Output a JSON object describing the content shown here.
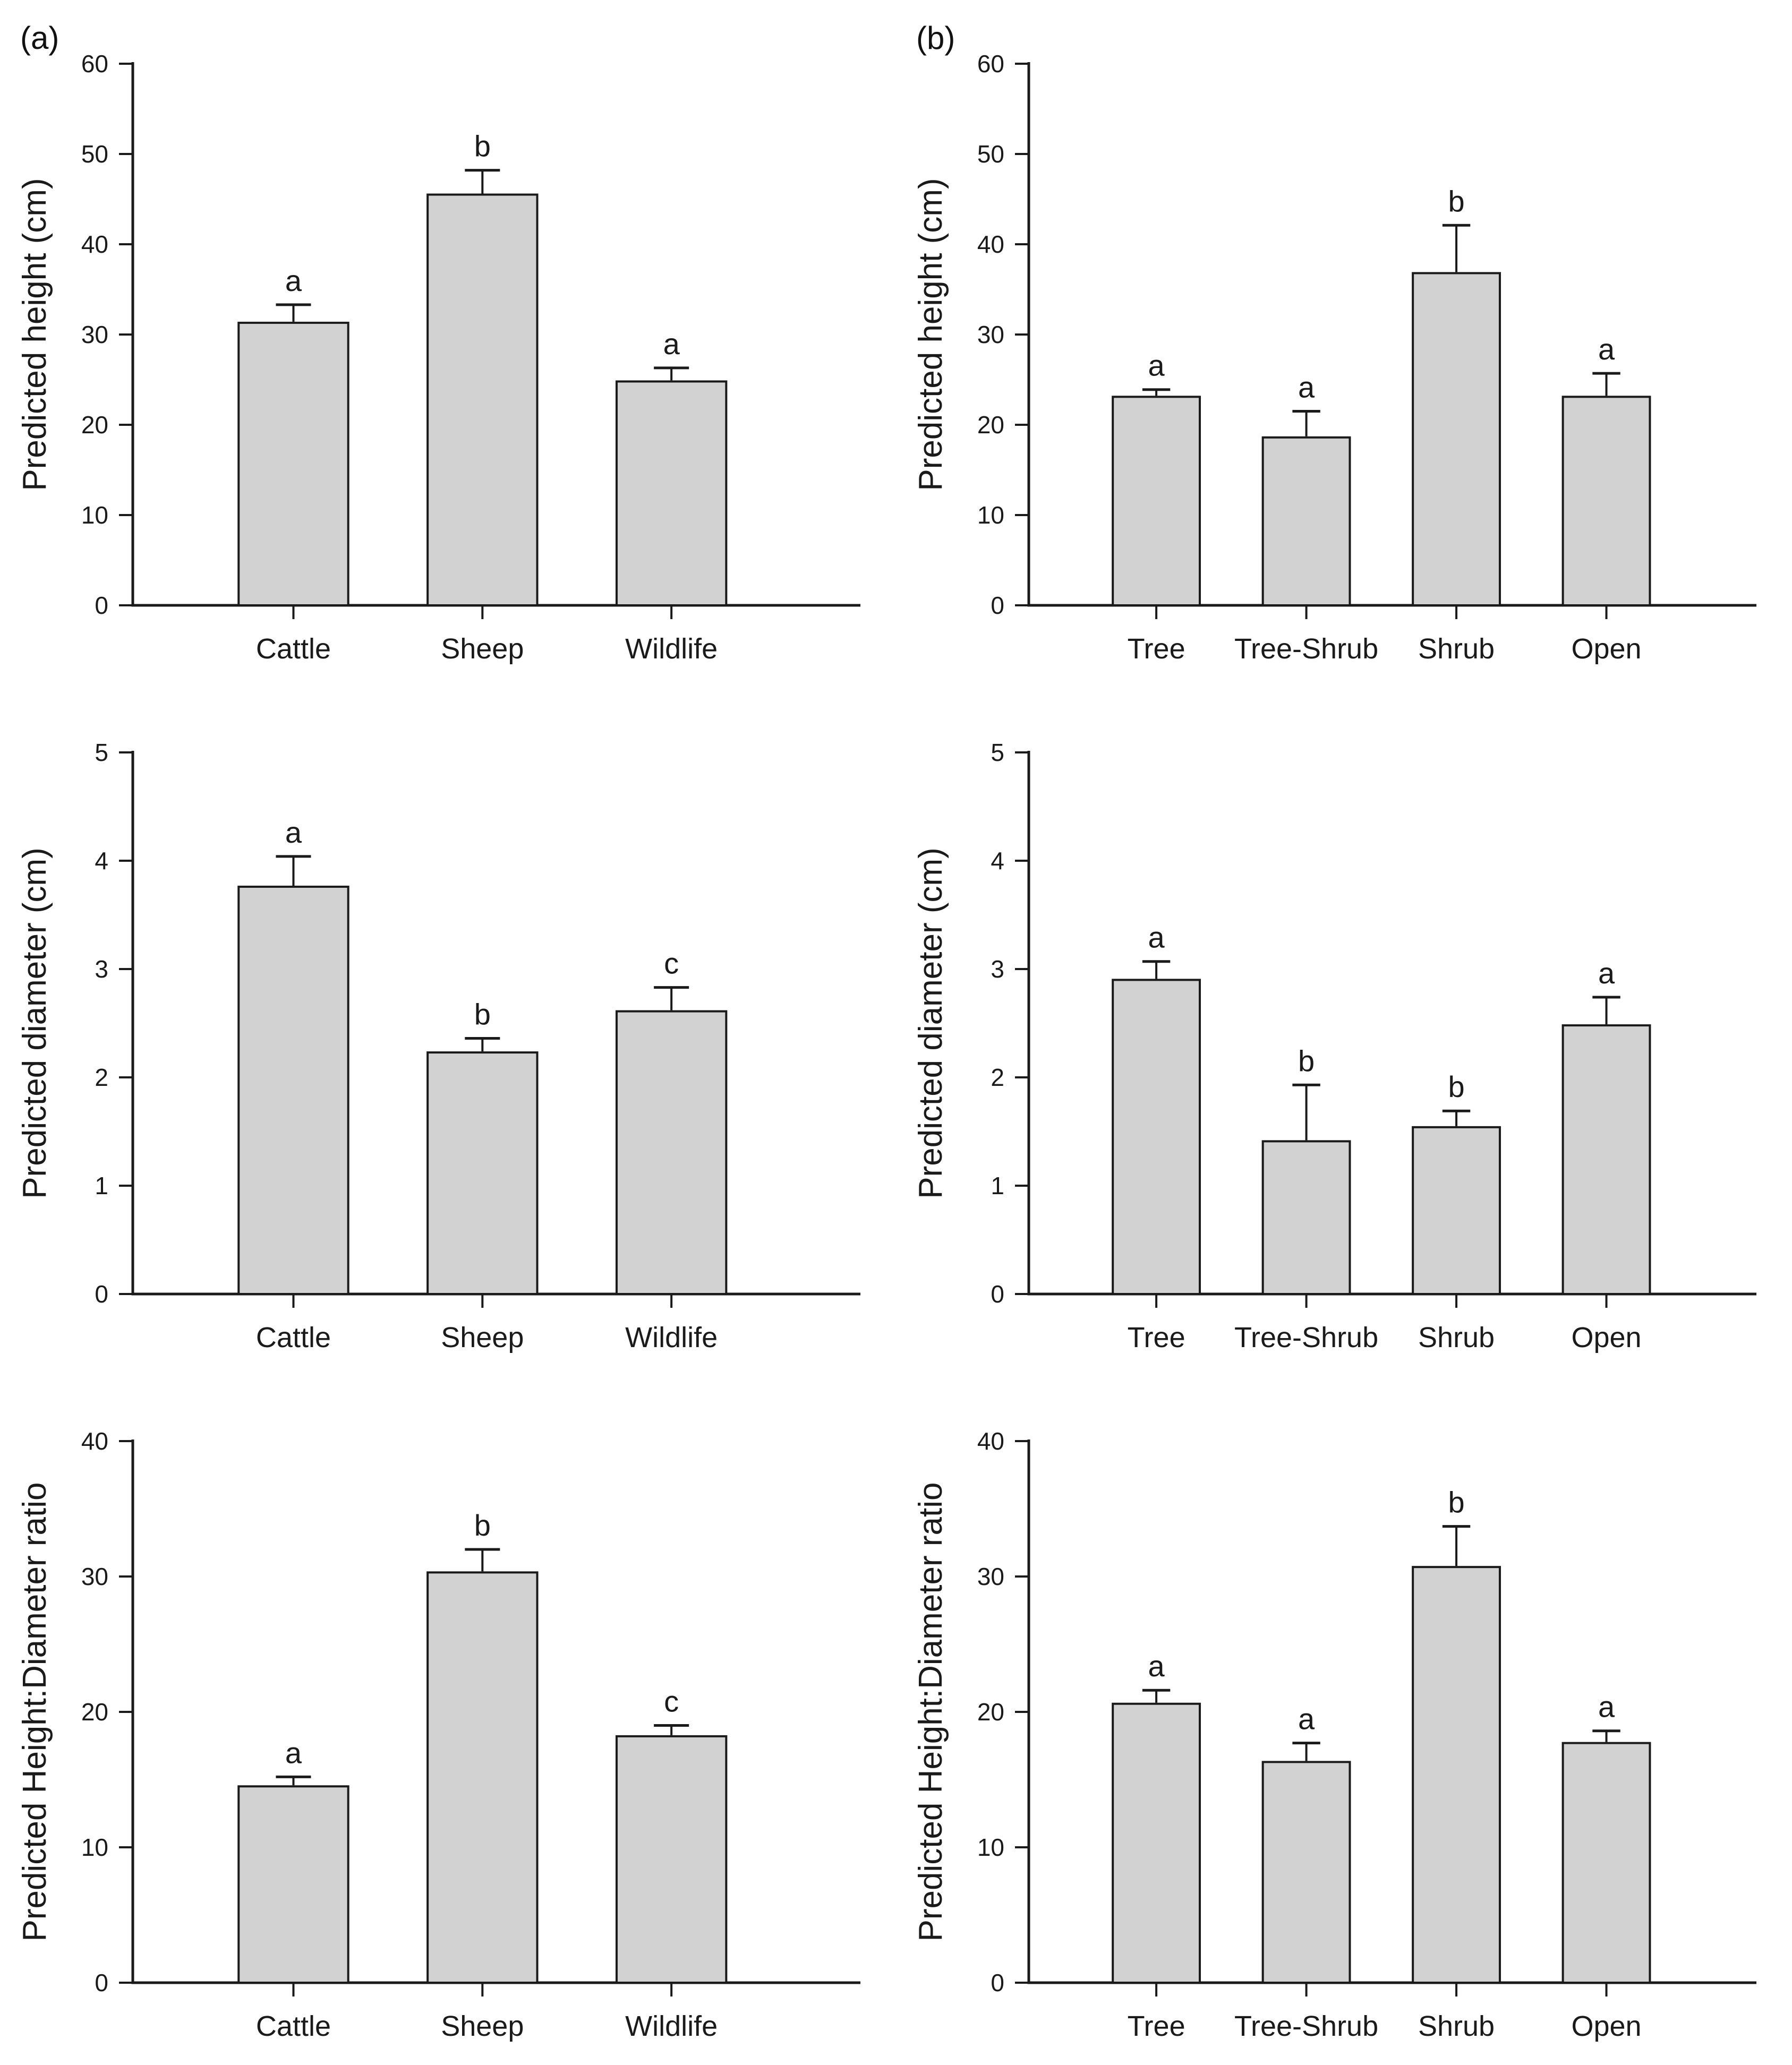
{
  "figure": {
    "panel_labels": [
      "(a)",
      "(b)"
    ],
    "bar_fill": "#d2d2d2",
    "bar_stroke": "#1a1a1a",
    "axis_color": "#1a1a1a",
    "background": "#ffffff"
  },
  "chart_data": [
    {
      "id": "a-height",
      "panel": "(a)",
      "type": "bar",
      "title": "",
      "xlabel": "",
      "ylabel": "Predicted height (cm)",
      "categories": [
        "Cattle",
        "Sheep",
        "Wildlife"
      ],
      "values": [
        31.3,
        45.5,
        24.8
      ],
      "errors_plus": [
        2.0,
        2.7,
        1.5
      ],
      "sig_letters": [
        "a",
        "b",
        "a"
      ],
      "ylim": [
        0,
        60
      ],
      "ytick_step": 10,
      "grid": false,
      "legend": null
    },
    {
      "id": "b-height",
      "panel": "(b)",
      "type": "bar",
      "title": "",
      "xlabel": "",
      "ylabel": "Predicted height (cm)",
      "categories": [
        "Tree",
        "Tree-Shrub",
        "Shrub",
        "Open"
      ],
      "values": [
        23.1,
        18.6,
        36.8,
        23.1
      ],
      "errors_plus": [
        0.8,
        2.9,
        5.3,
        2.6
      ],
      "sig_letters": [
        "a",
        "a",
        "b",
        "a"
      ],
      "ylim": [
        0,
        60
      ],
      "ytick_step": 10,
      "grid": false,
      "legend": null
    },
    {
      "id": "a-diameter",
      "panel": "(a)",
      "type": "bar",
      "title": "",
      "xlabel": "",
      "ylabel": "Predicted diameter (cm)",
      "categories": [
        "Cattle",
        "Sheep",
        "Wildlife"
      ],
      "values": [
        3.76,
        2.23,
        2.61
      ],
      "errors_plus": [
        0.28,
        0.13,
        0.22
      ],
      "sig_letters": [
        "a",
        "b",
        "c"
      ],
      "ylim": [
        0,
        5
      ],
      "ytick_step": 1,
      "grid": false,
      "legend": null
    },
    {
      "id": "b-diameter",
      "panel": "(b)",
      "type": "bar",
      "title": "",
      "xlabel": "",
      "ylabel": "Predicted diameter (cm)",
      "categories": [
        "Tree",
        "Tree-Shrub",
        "Shrub",
        "Open"
      ],
      "values": [
        2.9,
        1.41,
        1.54,
        2.48
      ],
      "errors_plus": [
        0.17,
        0.52,
        0.15,
        0.26
      ],
      "sig_letters": [
        "a",
        "b",
        "b",
        "a"
      ],
      "ylim": [
        0,
        5
      ],
      "ytick_step": 1,
      "grid": false,
      "legend": null
    },
    {
      "id": "a-ratio",
      "panel": "(a)",
      "type": "bar",
      "title": "",
      "xlabel": "",
      "ylabel": "Predicted Height:Diameter ratio",
      "categories": [
        "Cattle",
        "Sheep",
        "Wildlife"
      ],
      "values": [
        14.5,
        30.3,
        18.2
      ],
      "errors_plus": [
        0.7,
        1.7,
        0.8
      ],
      "sig_letters": [
        "a",
        "b",
        "c"
      ],
      "ylim": [
        0,
        40
      ],
      "ytick_step": 10,
      "grid": false,
      "legend": null
    },
    {
      "id": "b-ratio",
      "panel": "(b)",
      "type": "bar",
      "title": "",
      "xlabel": "",
      "ylabel": "Predicted Height:Diameter ratio",
      "categories": [
        "Tree",
        "Tree-Shrub",
        "Shrub",
        "Open"
      ],
      "values": [
        20.6,
        16.3,
        30.7,
        17.7
      ],
      "errors_plus": [
        1.0,
        1.4,
        3.0,
        0.9
      ],
      "sig_letters": [
        "a",
        "a",
        "b",
        "a"
      ],
      "ylim": [
        0,
        40
      ],
      "ytick_step": 10,
      "grid": false,
      "legend": null
    }
  ]
}
